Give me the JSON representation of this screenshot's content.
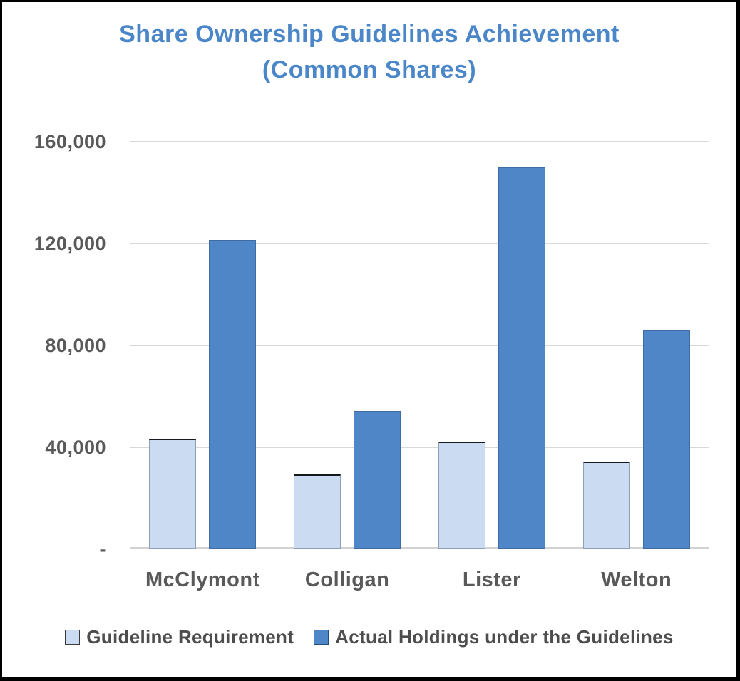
{
  "chart_data": {
    "type": "bar",
    "title": "Share Ownership Guidelines Achievement",
    "subtitle": "(Common Shares)",
    "categories": [
      "McClymont",
      "Colligan",
      "Lister",
      "Welton"
    ],
    "series": [
      {
        "name": "Guideline Requirement",
        "values": [
          43000,
          29000,
          42000,
          34000
        ],
        "fill": "#CBDCF2",
        "edge": "#8FA0B6",
        "edge_top": "#15181D",
        "legend_swatch_border": "#3B3B3B"
      },
      {
        "name": "Actual Holdings under the Guidelines",
        "values": [
          121000,
          54000,
          150000,
          86000
        ],
        "fill": "#4E86C8",
        "edge": "#3E6CA4",
        "edge_top": "#3E6CA4",
        "legend_swatch_border": "#1F4E79"
      }
    ],
    "yticks": [
      {
        "value": 160000,
        "label": "160,000"
      },
      {
        "value": 120000,
        "label": "120,000"
      },
      {
        "value": 80000,
        "label": "80,000"
      },
      {
        "value": 40000,
        "label": "40,000"
      },
      {
        "value": 0,
        "label": "-"
      }
    ],
    "ylim": [
      0,
      160000
    ],
    "xlabel": "",
    "ylabel": "",
    "grid": true,
    "legend_position": "bottom",
    "colors": {
      "title": "#4A86C8",
      "axis_text": "#595959",
      "legend_text": "#4D4D4D",
      "gridline": "#D9D9D9",
      "baseline": "#D2D2D2",
      "background": "#FFFFFF",
      "frame_border": "#000000"
    }
  }
}
